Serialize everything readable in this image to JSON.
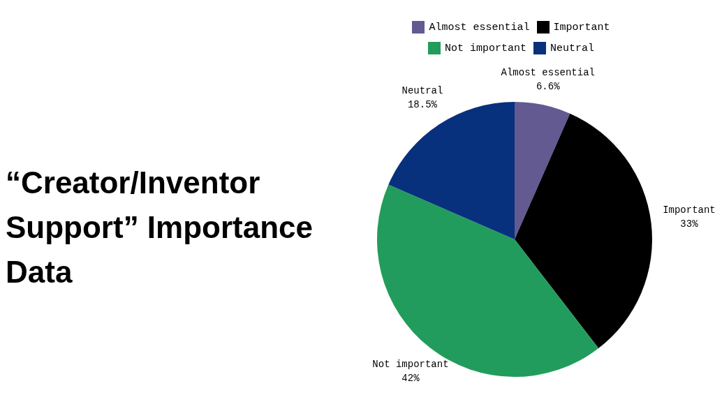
{
  "chart_data": {
    "type": "pie",
    "title": "“Creator/Inventor Support” Importance Data",
    "categories": [
      "Almost essential",
      "Important",
      "Not important",
      "Neutral"
    ],
    "values": [
      6.6,
      33,
      42,
      18.5
    ],
    "colors": [
      "#635a92",
      "#000000",
      "#229c5c",
      "#07307d"
    ],
    "value_labels": [
      "6.6%",
      "33%",
      "42%",
      "18.5%"
    ],
    "legend": "top"
  }
}
